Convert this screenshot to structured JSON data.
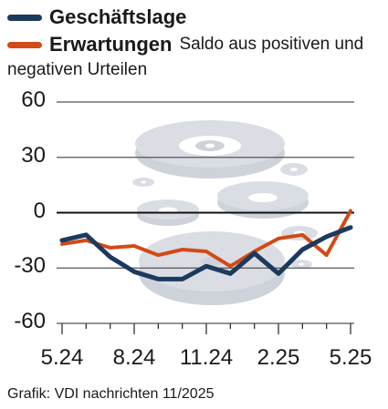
{
  "legend": {
    "series_0": "Geschäftslage",
    "series_1": "Erwartungen",
    "note_line1": "Saldo aus positiven und",
    "note_line2": "negativen Urteilen"
  },
  "source": "Grafik: VDI nachrichten 11/2025",
  "colors": {
    "series_0": "#1b3a5e",
    "series_1": "#d24a16",
    "grid": "#555555",
    "decor": "#c9ced6"
  },
  "chart_data": {
    "type": "line",
    "x": [
      "5.24",
      "6.24",
      "7.24",
      "8.24",
      "9.24",
      "10.24",
      "11.24",
      "12.24",
      "1.25",
      "2.25",
      "3.25",
      "4.25",
      "5.25"
    ],
    "x_ticks": [
      "5.24",
      "8.24",
      "11.24",
      "2.25",
      "5.25"
    ],
    "y_ticks": [
      "60",
      "30",
      "0",
      "-30",
      "-60"
    ],
    "ylim": [
      -60,
      60
    ],
    "grid": true,
    "series": [
      {
        "name": "Geschäftslage",
        "values": [
          -15,
          -12,
          -24,
          -32,
          -36,
          -36,
          -29,
          -33,
          -22,
          -33,
          -20,
          -13,
          -8
        ]
      },
      {
        "name": "Erwartungen",
        "values": [
          -17,
          -15,
          -19,
          -18,
          -23,
          -20,
          -21,
          -29,
          -21,
          -14,
          -12,
          -23,
          1
        ]
      }
    ]
  }
}
